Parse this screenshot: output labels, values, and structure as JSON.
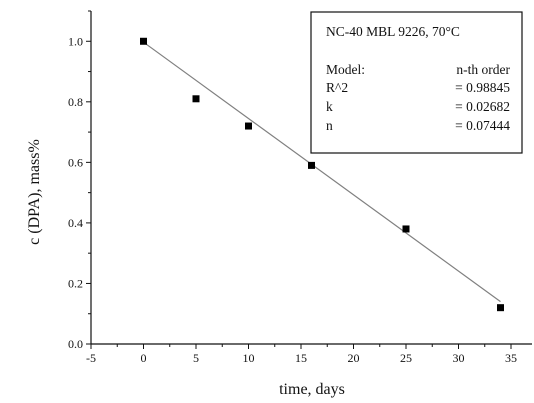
{
  "chart_data": {
    "type": "scatter",
    "xlabel": "time, days",
    "ylabel": "c (DPA), mass%",
    "xlim": [
      -5,
      37
    ],
    "ylim": [
      0,
      1.1
    ],
    "x_ticks": [
      -5,
      0,
      5,
      10,
      15,
      20,
      25,
      30,
      35
    ],
    "y_ticks": [
      0.0,
      0.2,
      0.4,
      0.6,
      0.8,
      1.0
    ],
    "x_tick_labels": [
      "-5",
      "0",
      "5",
      "10",
      "15",
      "20",
      "25",
      "30",
      "35"
    ],
    "y_tick_labels": [
      "0.0",
      "0.2",
      "0.4",
      "0.6",
      "0.8",
      "1.0"
    ],
    "series": [
      {
        "points": [
          {
            "x": 0,
            "y": 1.0
          },
          {
            "x": 5,
            "y": 0.81
          },
          {
            "x": 10,
            "y": 0.72
          },
          {
            "x": 16,
            "y": 0.59
          },
          {
            "x": 25,
            "y": 0.38
          },
          {
            "x": 34,
            "y": 0.12
          }
        ],
        "marker": "square",
        "color": "#000000"
      }
    ],
    "fit_line": {
      "x": [
        0,
        34
      ],
      "y": [
        0.997,
        0.14
      ],
      "color": "#808080"
    },
    "legend": {
      "position": "top-right",
      "title": "NC-40  MBL 9226,  70°C",
      "rows": [
        {
          "label": "Model:",
          "value": "n-th order"
        },
        {
          "label": "R^2",
          "value": "= 0.98845"
        },
        {
          "label": "k",
          "value": "= 0.02682"
        },
        {
          "label": "n",
          "value": "= 0.07444"
        }
      ]
    },
    "grid": false
  }
}
